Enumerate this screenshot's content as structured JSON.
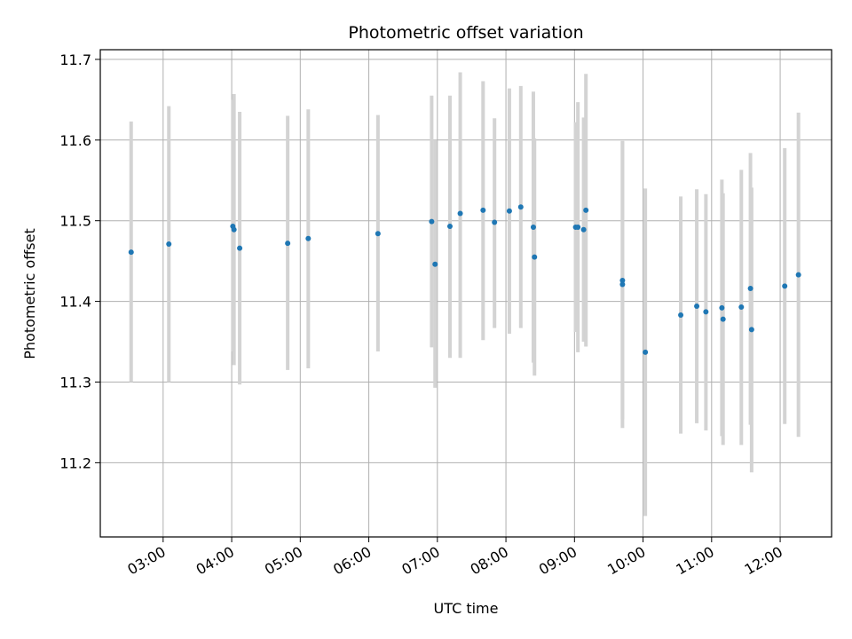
{
  "chart_data": {
    "type": "scatter",
    "title": "Photometric offset variation",
    "xlabel": "UTC time",
    "ylabel": "Photometric offset",
    "grid": true,
    "legend": "none",
    "x_unit": "hour",
    "xlim": [
      "02:05",
      "12:45"
    ],
    "ylim": [
      11.108,
      11.712
    ],
    "x_ticks": [
      "03:00",
      "04:00",
      "05:00",
      "06:00",
      "07:00",
      "08:00",
      "09:00",
      "10:00",
      "11:00",
      "12:00"
    ],
    "y_ticks": [
      "11.2",
      "11.3",
      "11.4",
      "11.5",
      "11.6",
      "11.7"
    ],
    "colors": {
      "point": "#1f77b4",
      "errorbar": "#d3d3d3",
      "grid": "#b0b0b0"
    },
    "points": [
      {
        "x": "02:32",
        "y": 11.461,
        "ylo": 11.3,
        "yhi": 11.623
      },
      {
        "x": "03:05",
        "y": 11.471,
        "ylo": 11.3,
        "yhi": 11.642
      },
      {
        "x": "04:01",
        "y": 11.493,
        "ylo": 11.338,
        "yhi": 11.65
      },
      {
        "x": "04:02",
        "y": 11.489,
        "ylo": 11.321,
        "yhi": 11.657
      },
      {
        "x": "04:07",
        "y": 11.466,
        "ylo": 11.297,
        "yhi": 11.635
      },
      {
        "x": "04:49",
        "y": 11.472,
        "ylo": 11.315,
        "yhi": 11.63
      },
      {
        "x": "05:07",
        "y": 11.478,
        "ylo": 11.317,
        "yhi": 11.638
      },
      {
        "x": "06:08",
        "y": 11.484,
        "ylo": 11.338,
        "yhi": 11.631
      },
      {
        "x": "06:55",
        "y": 11.499,
        "ylo": 11.343,
        "yhi": 11.655
      },
      {
        "x": "06:58",
        "y": 11.446,
        "ylo": 11.293,
        "yhi": 11.6
      },
      {
        "x": "07:11",
        "y": 11.493,
        "ylo": 11.33,
        "yhi": 11.655
      },
      {
        "x": "07:20",
        "y": 11.509,
        "ylo": 11.33,
        "yhi": 11.684
      },
      {
        "x": "07:40",
        "y": 11.513,
        "ylo": 11.352,
        "yhi": 11.673
      },
      {
        "x": "07:50",
        "y": 11.498,
        "ylo": 11.367,
        "yhi": 11.627
      },
      {
        "x": "08:03",
        "y": 11.512,
        "ylo": 11.36,
        "yhi": 11.664
      },
      {
        "x": "08:13",
        "y": 11.517,
        "ylo": 11.367,
        "yhi": 11.667
      },
      {
        "x": "08:24",
        "y": 11.492,
        "ylo": 11.324,
        "yhi": 11.66
      },
      {
        "x": "08:25",
        "y": 11.455,
        "ylo": 11.308,
        "yhi": 11.602
      },
      {
        "x": "09:01",
        "y": 11.492,
        "ylo": 11.362,
        "yhi": 11.622
      },
      {
        "x": "09:03",
        "y": 11.492,
        "ylo": 11.337,
        "yhi": 11.647
      },
      {
        "x": "09:08",
        "y": 11.489,
        "ylo": 11.35,
        "yhi": 11.628
      },
      {
        "x": "09:10",
        "y": 11.513,
        "ylo": 11.344,
        "yhi": 11.682
      },
      {
        "x": "09:42",
        "y": 11.426,
        "ylo": 11.254,
        "yhi": 11.598
      },
      {
        "x": "09:42",
        "y": 11.421,
        "ylo": 11.243,
        "yhi": 11.599
      },
      {
        "x": "10:02",
        "y": 11.337,
        "ylo": 11.134,
        "yhi": 11.54
      },
      {
        "x": "10:33",
        "y": 11.383,
        "ylo": 11.236,
        "yhi": 11.53
      },
      {
        "x": "10:47",
        "y": 11.394,
        "ylo": 11.249,
        "yhi": 11.539
      },
      {
        "x": "10:55",
        "y": 11.387,
        "ylo": 11.24,
        "yhi": 11.533
      },
      {
        "x": "11:09",
        "y": 11.392,
        "ylo": 11.233,
        "yhi": 11.551
      },
      {
        "x": "11:10",
        "y": 11.378,
        "ylo": 11.222,
        "yhi": 11.534
      },
      {
        "x": "11:26",
        "y": 11.393,
        "ylo": 11.222,
        "yhi": 11.563
      },
      {
        "x": "11:34",
        "y": 11.416,
        "ylo": 11.247,
        "yhi": 11.584
      },
      {
        "x": "11:35",
        "y": 11.365,
        "ylo": 11.188,
        "yhi": 11.541
      },
      {
        "x": "12:04",
        "y": 11.419,
        "ylo": 11.248,
        "yhi": 11.59
      },
      {
        "x": "12:16",
        "y": 11.433,
        "ylo": 11.232,
        "yhi": 11.634
      }
    ]
  }
}
